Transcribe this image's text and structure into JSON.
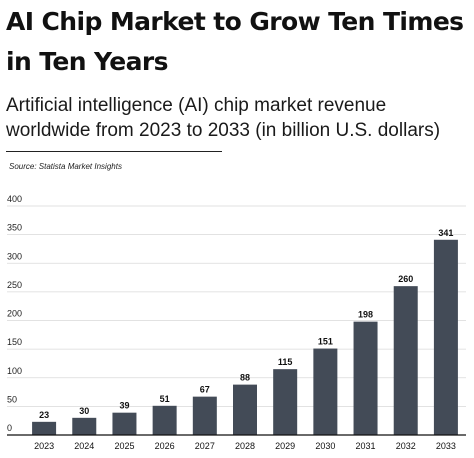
{
  "header": {
    "title": "AI Chip Market to Grow Ten Times in Ten Years",
    "subtitle": "Artificial intelligence (AI) chip market revenue worldwide from 2023 to 2033 (in billion U.S. dollars)",
    "source": "Source: Statista Market Insights"
  },
  "colors": {
    "bar": "#434b57",
    "grid": "#d9d9d9",
    "baseline": "#111111"
  },
  "chart_data": {
    "type": "bar",
    "title": "AI Chip Market to Grow Ten Times in Ten Years",
    "subtitle": "Artificial intelligence (AI) chip market revenue worldwide from 2023 to 2033 (in billion U.S. dollars)",
    "xlabel": "",
    "ylabel": "",
    "categories": [
      "2023",
      "2024",
      "2025",
      "2026",
      "2027",
      "2028",
      "2029",
      "2030",
      "2031",
      "2032",
      "2033"
    ],
    "values": [
      23,
      30,
      39,
      51,
      67,
      88,
      115,
      151,
      198,
      260,
      341
    ],
    "value_labels": [
      "23",
      "30",
      "39",
      "51",
      "67",
      "88",
      "115",
      "151",
      "198",
      "260",
      "341"
    ],
    "ylim": [
      0,
      400
    ],
    "yticks": [
      0,
      50,
      100,
      150,
      200,
      250,
      300,
      350,
      400
    ],
    "ytick_labels": [
      "0",
      "50",
      "100",
      "150",
      "200",
      "250",
      "300",
      "350",
      "400"
    ],
    "grid": true,
    "legend": "none"
  }
}
